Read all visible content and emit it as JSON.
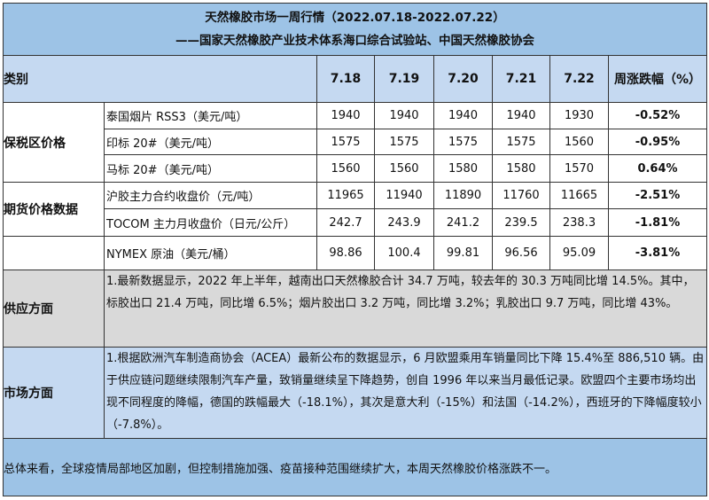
{
  "title": "天然橡胶市场一周行情（2022.07.18-2022.07.22）",
  "subtitle": "——国家天然橡胶产业技术体系海口综合试验站、中国天然橡胶协会",
  "header": {
    "category": "类别",
    "dates": [
      "7.18",
      "7.19",
      "7.20",
      "7.21",
      "7.22"
    ],
    "change": "周涨跌幅（%）"
  },
  "groups": [
    {
      "label": "保税区价格",
      "rows": [
        {
          "name": "泰国烟片 RSS3（美元/吨）",
          "values": [
            "1940",
            "1940",
            "1940",
            "1940",
            "1930"
          ],
          "change": "-0.52%"
        },
        {
          "name": "印标 20#（美元/吨）",
          "values": [
            "1575",
            "1575",
            "1575",
            "1575",
            "1560"
          ],
          "change": "-0.95%"
        },
        {
          "name": "马标 20#（美元/吨）",
          "values": [
            "1560",
            "1560",
            "1580",
            "1580",
            "1570"
          ],
          "change": "0.64%"
        }
      ]
    },
    {
      "label": "期货价格数据",
      "rows": [
        {
          "name": "沪胶主力合约收盘价（元/吨）",
          "values": [
            "11965",
            "11940",
            "11890",
            "11760",
            "11665"
          ],
          "change": "-2.51%"
        },
        {
          "name": "TOCOM 主力月收盘价（日元/公斤）",
          "values": [
            "242.7",
            "243.9",
            "241.2",
            "239.5",
            "238.3"
          ],
          "change": "-1.81%"
        }
      ]
    },
    {
      "label": "",
      "rows": [
        {
          "name": "NYMEX 原油（美元/桶）",
          "values": [
            "98.86",
            "100.4",
            "99.81",
            "96.56",
            "95.09"
          ],
          "change": "-3.81%"
        }
      ]
    }
  ],
  "supply": {
    "label": "供应方面",
    "text": "1.最新数据显示，2022 年上半年，越南出口天然橡胶合计 34.7 万吨，较去年的 30.3 万吨同比增 14.5%。其中，标胶出口 21.4 万吨，同比增 6.5%；烟片胶出口 3.2 万吨，同比增 3.2%；乳胶出口 9.7 万吨，同比增 43%。"
  },
  "market": {
    "label": "市场方面",
    "text": "1.根据欧洲汽车制造商协会（ACEA）最新公布的数据显示，6 月欧盟乘用车销量同比下降 15.4%至 886,510 辆。由于供应链问题继续限制汽车产量，致销量继续呈下降趋势，创自 1996 年以来当月最低记录。欧盟四个主要市场均出现不同程度的降幅，德国的跌幅最大（-18.1%），其次是意大利（-15%）和法国（-14.2%），西班牙的下降幅度较小（-7.8%）。"
  },
  "summary": "总体来看，全球疫情局部地区加剧，但控制措施加强、疫苗接种范围继续扩大，本周天然橡胶价格涨跌不一。"
}
